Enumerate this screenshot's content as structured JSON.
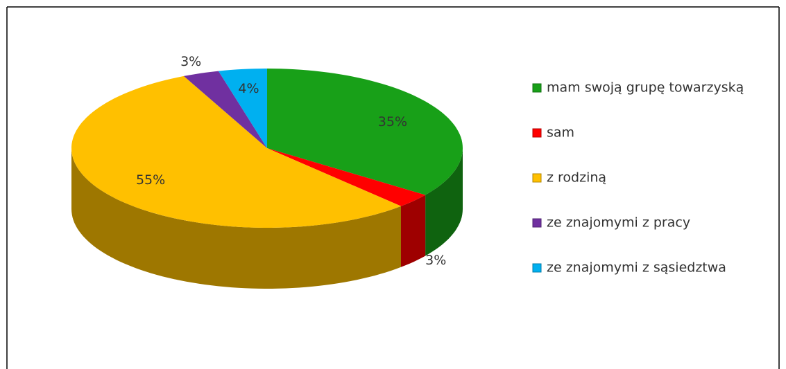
{
  "chart_data": {
    "type": "pie",
    "categories": [
      "mam swoją grupę towarzyską",
      "sam",
      "z rodziną",
      "ze znajomymi z pracy",
      "ze znajomymi z sąsiedztwa"
    ],
    "values": [
      35,
      3,
      55,
      3,
      4
    ],
    "value_labels": [
      "35%",
      "3%",
      "55%",
      "3%",
      "4%"
    ],
    "colors": [
      "#18a018",
      "#ff0000",
      "#ffc000",
      "#7030a0",
      "#00b0f0"
    ],
    "legend": "right"
  }
}
